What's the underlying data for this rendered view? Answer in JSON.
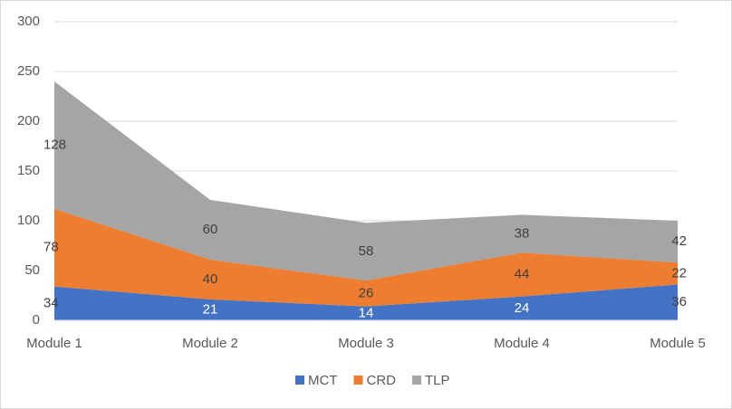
{
  "chart_data": {
    "type": "area",
    "categories": [
      "Module 1",
      "Module 2",
      "Module 3",
      "Module 4",
      "Module 5"
    ],
    "series": [
      {
        "name": "MCT",
        "color": "#4472c4",
        "values": [
          34,
          21,
          14,
          24,
          36
        ]
      },
      {
        "name": "CRD",
        "color": "#ed7d31",
        "values": [
          78,
          40,
          26,
          44,
          22
        ]
      },
      {
        "name": "TLP",
        "color": "#a5a5a5",
        "values": [
          128,
          60,
          58,
          38,
          42
        ]
      }
    ],
    "stacked": true,
    "ylim": [
      0,
      300
    ],
    "yticks": [
      0,
      50,
      100,
      150,
      200,
      250,
      300
    ],
    "grid": true,
    "legend": "bottom"
  }
}
